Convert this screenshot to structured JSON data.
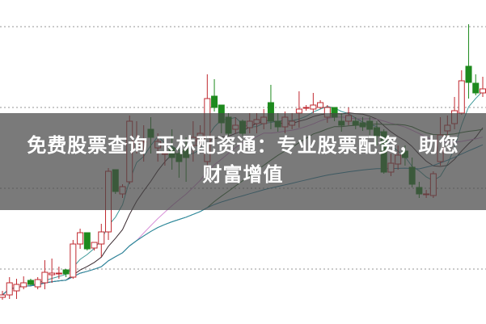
{
  "overlay": {
    "title_line1": "免费股票查询 玉林配资通：专业股票配资，助您",
    "title_line2": "财富增值"
  },
  "chart_data": {
    "type": "candlestick",
    "title": "",
    "xlabel": "",
    "ylabel": "",
    "ylim": [
      0.32,
      4.33
    ],
    "gridlines_y": [
      1,
      2,
      3,
      4
    ],
    "grid": "horizontal dotted",
    "colors": {
      "up": "#c0282f",
      "down": "#1e8a1e",
      "grid": "#aaaaaa"
    },
    "moving_averages": [
      {
        "period": 5,
        "color": "#3f9a9a"
      },
      {
        "period": 10,
        "color": "#3a2a30"
      },
      {
        "period": 20,
        "color": "#d890d8"
      },
      {
        "period": 30,
        "color": "#2f6a2f"
      },
      {
        "period": 60,
        "color": "#2a8aa8"
      }
    ],
    "ohlc": [
      [
        0.65,
        0.73,
        0.62,
        0.68
      ],
      [
        0.68,
        0.9,
        0.63,
        0.83
      ],
      [
        0.73,
        0.88,
        0.63,
        0.81
      ],
      [
        0.78,
        0.91,
        0.75,
        0.83
      ],
      [
        0.86,
        0.88,
        0.8,
        0.81
      ],
      [
        0.78,
        0.9,
        0.75,
        0.87
      ],
      [
        0.83,
        1.11,
        0.75,
        0.96
      ],
      [
        0.93,
        1.13,
        0.83,
        0.95
      ],
      [
        0.94,
        1.03,
        0.88,
        0.95
      ],
      [
        0.99,
        1.0,
        0.9,
        0.94
      ],
      [
        0.9,
        1.36,
        0.88,
        1.31
      ],
      [
        1.31,
        1.5,
        1.25,
        1.45
      ],
      [
        1.45,
        1.45,
        1.23,
        1.25
      ],
      [
        1.26,
        1.33,
        1.23,
        1.33
      ],
      [
        1.31,
        1.56,
        1.15,
        1.46
      ],
      [
        1.46,
        2.25,
        1.36,
        2.21
      ],
      [
        2.23,
        2.23,
        1.93,
        1.96
      ],
      [
        1.93,
        2.05,
        1.88,
        2.02
      ],
      [
        2.08,
        2.9,
        2.05,
        2.83
      ],
      [
        2.48,
        2.83,
        2.43,
        2.58
      ],
      [
        2.58,
        2.78,
        2.33,
        2.58
      ],
      [
        2.73,
        2.88,
        2.43,
        2.63
      ],
      [
        2.5,
        2.68,
        2.33,
        2.58
      ],
      [
        2.43,
        2.63,
        2.28,
        2.43
      ],
      [
        2.5,
        2.73,
        2.23,
        2.38
      ],
      [
        2.43,
        2.53,
        2.13,
        2.33
      ],
      [
        2.48,
        2.63,
        2.08,
        2.38
      ],
      [
        2.53,
        2.83,
        2.33,
        2.63
      ],
      [
        2.58,
        2.78,
        2.48,
        2.68
      ],
      [
        2.33,
        3.41,
        2.23,
        3.11
      ],
      [
        3.14,
        3.35,
        2.95,
        3.0
      ],
      [
        3.03,
        3.03,
        2.68,
        2.81
      ],
      [
        2.88,
        2.93,
        2.65,
        2.68
      ],
      [
        2.73,
        2.88,
        2.68,
        2.78
      ],
      [
        2.83,
        2.85,
        2.65,
        2.68
      ],
      [
        2.75,
        2.93,
        2.68,
        2.83
      ],
      [
        2.8,
        2.93,
        2.68,
        2.85
      ],
      [
        2.8,
        2.98,
        2.73,
        2.88
      ],
      [
        3.06,
        3.28,
        2.73,
        2.83
      ],
      [
        2.83,
        2.93,
        2.7,
        2.76
      ],
      [
        2.76,
        2.95,
        2.68,
        2.88
      ],
      [
        2.78,
        2.93,
        2.73,
        2.83
      ],
      [
        2.93,
        3.2,
        2.75,
        2.98
      ],
      [
        3.0,
        3.03,
        2.96,
        3.0
      ],
      [
        2.98,
        3.18,
        2.93,
        3.03
      ],
      [
        3.0,
        3.09,
        2.98,
        3.06
      ],
      [
        2.88,
        3.03,
        2.81,
        3.0
      ],
      [
        3.0,
        3.0,
        2.83,
        2.88
      ],
      [
        2.83,
        2.93,
        2.7,
        2.78
      ],
      [
        2.83,
        3.0,
        2.78,
        2.9
      ],
      [
        2.83,
        2.88,
        2.73,
        2.78
      ],
      [
        2.81,
        2.88,
        2.71,
        2.76
      ],
      [
        2.83,
        2.88,
        2.66,
        2.73
      ],
      [
        2.75,
        2.83,
        2.53,
        2.65
      ],
      [
        2.7,
        2.73,
        2.18,
        2.2
      ],
      [
        2.2,
        2.43,
        2.15,
        2.31
      ],
      [
        2.3,
        2.53,
        2.23,
        2.41
      ],
      [
        2.46,
        2.53,
        2.28,
        2.38
      ],
      [
        2.26,
        2.38,
        2.01,
        2.05
      ],
      [
        2.01,
        2.08,
        1.88,
        1.93
      ],
      [
        1.93,
        1.98,
        1.88,
        1.93
      ],
      [
        1.91,
        2.21,
        1.88,
        2.18
      ],
      [
        2.33,
        2.88,
        2.28,
        2.66
      ],
      [
        2.71,
        2.9,
        2.65,
        2.78
      ],
      [
        2.8,
        3.13,
        2.73,
        2.96
      ],
      [
        2.93,
        3.46,
        2.91,
        3.33
      ],
      [
        3.51,
        4.03,
        3.11,
        3.31
      ],
      [
        3.3,
        3.41,
        3.15,
        3.18
      ],
      [
        3.18,
        3.38,
        3.13,
        3.23
      ]
    ]
  }
}
